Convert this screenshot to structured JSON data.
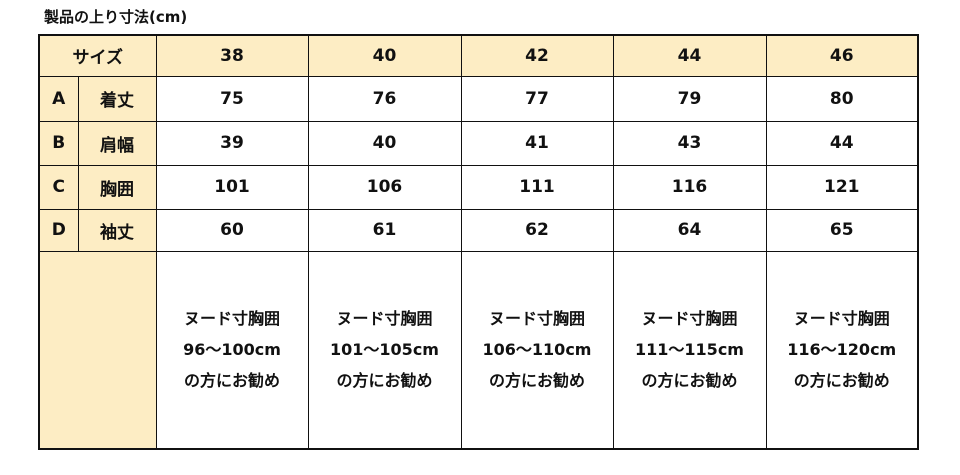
{
  "title": "製品の上り寸法(cm)",
  "header": {
    "label": "サイズ",
    "sizes": [
      "38",
      "40",
      "42",
      "44",
      "46"
    ]
  },
  "rows": [
    {
      "code": "A",
      "name": "着丈",
      "values": [
        "75",
        "76",
        "77",
        "79",
        "80"
      ]
    },
    {
      "code": "B",
      "name": "肩幅",
      "values": [
        "39",
        "40",
        "41",
        "43",
        "44"
      ]
    },
    {
      "code": "C",
      "name": "胸囲",
      "values": [
        "101",
        "106",
        "111",
        "116",
        "121"
      ]
    },
    {
      "code": "D",
      "name": "袖丈",
      "values": [
        "60",
        "61",
        "62",
        "64",
        "65"
      ]
    }
  ],
  "notes": [
    {
      "l1": "ヌード寸胸囲",
      "l2": "96～100cm",
      "l3": "の方にお勧め"
    },
    {
      "l1": "ヌード寸胸囲",
      "l2": "101～105cm",
      "l3": "の方にお勧め"
    },
    {
      "l1": "ヌード寸胸囲",
      "l2": "106～110cm",
      "l3": "の方にお勧め"
    },
    {
      "l1": "ヌード寸胸囲",
      "l2": "111～115cm",
      "l3": "の方にお勧め"
    },
    {
      "l1": "ヌード寸胸囲",
      "l2": "116～120cm",
      "l3": "の方にお勧め"
    }
  ],
  "colors": {
    "header_fill": "#fdedc4"
  }
}
